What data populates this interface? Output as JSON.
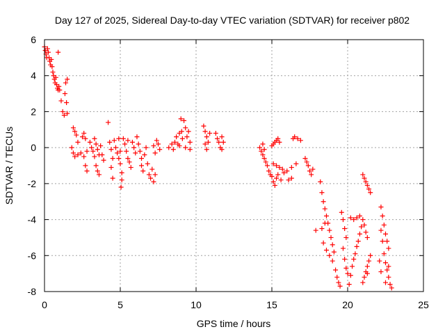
{
  "chart_data": {
    "type": "scatter",
    "title": "Day 127 of 2025, Sidereal Day-to-day VTEC variation (SDTVAR) for receiver p802",
    "xlabel": "GPS time / hours",
    "ylabel": "SDTVAR / TECUs",
    "xlim": [
      0,
      25
    ],
    "ylim": [
      -8,
      6
    ],
    "xticks": [
      0,
      5,
      10,
      15,
      20,
      25
    ],
    "yticks": [
      -8,
      -6,
      -4,
      -2,
      0,
      2,
      4,
      6
    ],
    "grid": true,
    "marker": "+",
    "color": "#ff0000",
    "series": [
      {
        "name": "SDTVAR",
        "points": [
          [
            0.0,
            5.6
          ],
          [
            0.05,
            5.4
          ],
          [
            0.1,
            5.2
          ],
          [
            0.15,
            5.0
          ],
          [
            0.2,
            5.5
          ],
          [
            0.25,
            5.3
          ],
          [
            0.3,
            5.0
          ],
          [
            0.35,
            4.8
          ],
          [
            0.4,
            4.6
          ],
          [
            0.45,
            4.9
          ],
          [
            0.5,
            4.5
          ],
          [
            0.55,
            4.2
          ],
          [
            0.6,
            4.0
          ],
          [
            0.65,
            3.8
          ],
          [
            0.7,
            3.6
          ],
          [
            0.75,
            3.9
          ],
          [
            0.8,
            3.5
          ],
          [
            0.85,
            3.3
          ],
          [
            0.9,
            3.2
          ],
          [
            0.95,
            3.4
          ],
          [
            0.9,
            5.3
          ],
          [
            1.0,
            3.2
          ],
          [
            1.1,
            2.6
          ],
          [
            1.2,
            2.0
          ],
          [
            1.3,
            1.8
          ],
          [
            1.35,
            3.0
          ],
          [
            1.4,
            3.6
          ],
          [
            1.5,
            3.8
          ],
          [
            1.45,
            2.5
          ],
          [
            1.5,
            1.9
          ],
          [
            1.9,
            1.1
          ],
          [
            2.0,
            0.9
          ],
          [
            2.1,
            0.7
          ],
          [
            2.2,
            0.3
          ],
          [
            1.8,
            0.0
          ],
          [
            1.9,
            -0.3
          ],
          [
            2.0,
            -0.5
          ],
          [
            2.2,
            -0.4
          ],
          [
            2.4,
            -0.3
          ],
          [
            2.5,
            0.6
          ],
          [
            2.6,
            0.8
          ],
          [
            2.7,
            0.5
          ],
          [
            2.8,
            -0.2
          ],
          [
            2.6,
            -0.5
          ],
          [
            2.7,
            -1.0
          ],
          [
            2.8,
            -1.3
          ],
          [
            3.0,
            0.3
          ],
          [
            3.1,
            0.0
          ],
          [
            3.2,
            -0.2
          ],
          [
            3.3,
            -0.5
          ],
          [
            3.3,
            0.5
          ],
          [
            3.4,
            0.2
          ],
          [
            3.5,
            -0.1
          ],
          [
            3.6,
            -0.4
          ],
          [
            3.4,
            -1.0
          ],
          [
            3.5,
            -1.3
          ],
          [
            3.6,
            -1.5
          ],
          [
            3.7,
            0.1
          ],
          [
            3.8,
            -0.4
          ],
          [
            3.9,
            -0.7
          ],
          [
            4.2,
            1.4
          ],
          [
            4.3,
            0.3
          ],
          [
            4.4,
            -0.1
          ],
          [
            4.5,
            -0.6
          ],
          [
            4.4,
            -1.1
          ],
          [
            4.5,
            -1.7
          ],
          [
            4.6,
            0.4
          ],
          [
            4.7,
            0.0
          ],
          [
            4.8,
            -0.3
          ],
          [
            4.9,
            -0.6
          ],
          [
            4.9,
            0.5
          ],
          [
            5.0,
            -0.2
          ],
          [
            5.0,
            -0.9
          ],
          [
            5.1,
            -1.4
          ],
          [
            5.05,
            -2.2
          ],
          [
            5.1,
            -1.8
          ],
          [
            5.2,
            0.5
          ],
          [
            5.3,
            0.2
          ],
          [
            5.4,
            -0.2
          ],
          [
            5.5,
            -0.6
          ],
          [
            5.5,
            0.4
          ],
          [
            5.6,
            -0.8
          ],
          [
            5.7,
            -1.1
          ],
          [
            5.8,
            0.3
          ],
          [
            5.9,
            0.0
          ],
          [
            6.0,
            -0.3
          ],
          [
            6.1,
            0.6
          ],
          [
            6.2,
            0.2
          ],
          [
            6.3,
            -0.2
          ],
          [
            6.4,
            -0.6
          ],
          [
            6.4,
            -1.0
          ],
          [
            6.5,
            -1.3
          ],
          [
            6.6,
            -0.4
          ],
          [
            6.7,
            0.0
          ],
          [
            6.8,
            -0.9
          ],
          [
            6.9,
            -1.5
          ],
          [
            7.0,
            -1.7
          ],
          [
            7.1,
            -1.2
          ],
          [
            7.2,
            -1.9
          ],
          [
            7.3,
            -1.5
          ],
          [
            7.4,
            0.4
          ],
          [
            7.5,
            0.2
          ],
          [
            7.6,
            -0.1
          ],
          [
            7.2,
            0.1
          ],
          [
            7.3,
            -0.3
          ],
          [
            8.2,
            0.0
          ],
          [
            8.4,
            0.2
          ],
          [
            8.5,
            -0.1
          ],
          [
            8.6,
            0.3
          ],
          [
            8.7,
            0.6
          ],
          [
            8.8,
            0.2
          ],
          [
            8.9,
            0.8
          ],
          [
            9.0,
            1.6
          ],
          [
            9.05,
            0.9
          ],
          [
            9.1,
            0.5
          ],
          [
            9.2,
            1.5
          ],
          [
            9.3,
            1.1
          ],
          [
            9.4,
            0.6
          ],
          [
            9.5,
            0.9
          ],
          [
            9.6,
            0.3
          ],
          [
            9.6,
            -0.1
          ],
          [
            9.3,
            0.0
          ],
          [
            8.9,
            0.1
          ],
          [
            10.5,
            1.2
          ],
          [
            10.6,
            0.9
          ],
          [
            10.7,
            0.6
          ],
          [
            10.8,
            0.3
          ],
          [
            10.9,
            0.8
          ],
          [
            10.6,
            0.2
          ],
          [
            10.7,
            -0.1
          ],
          [
            11.3,
            0.8
          ],
          [
            11.4,
            0.5
          ],
          [
            11.5,
            0.3
          ],
          [
            11.6,
            0.0
          ],
          [
            11.7,
            0.6
          ],
          [
            11.8,
            0.3
          ],
          [
            11.7,
            -0.1
          ],
          [
            14.2,
            0.0
          ],
          [
            14.3,
            -0.2
          ],
          [
            14.4,
            -0.4
          ],
          [
            14.5,
            -0.6
          ],
          [
            14.4,
            0.2
          ],
          [
            14.5,
            -0.1
          ],
          [
            14.6,
            -0.8
          ],
          [
            14.7,
            -1.0
          ],
          [
            14.8,
            -1.3
          ],
          [
            14.9,
            -1.5
          ],
          [
            15.0,
            -1.6
          ],
          [
            15.1,
            -1.9
          ],
          [
            15.2,
            -2.1
          ],
          [
            15.3,
            -1.7
          ],
          [
            15.1,
            -0.9
          ],
          [
            15.3,
            -1.0
          ],
          [
            15.5,
            -1.1
          ],
          [
            15.7,
            -1.2
          ],
          [
            15.4,
            -1.5
          ],
          [
            15.6,
            -1.8
          ],
          [
            15.0,
            0.1
          ],
          [
            15.1,
            0.2
          ],
          [
            15.2,
            0.3
          ],
          [
            15.3,
            0.4
          ],
          [
            15.4,
            0.5
          ],
          [
            15.5,
            0.3
          ],
          [
            15.8,
            -1.4
          ],
          [
            16.0,
            -1.3
          ],
          [
            16.3,
            -1.1
          ],
          [
            16.6,
            -0.9
          ],
          [
            16.4,
            0.5
          ],
          [
            16.5,
            0.6
          ],
          [
            16.7,
            0.5
          ],
          [
            16.9,
            0.4
          ],
          [
            16.1,
            -1.8
          ],
          [
            16.3,
            -1.7
          ],
          [
            17.2,
            -0.6
          ],
          [
            17.3,
            -0.8
          ],
          [
            17.4,
            -1.0
          ],
          [
            17.5,
            -1.3
          ],
          [
            17.6,
            -1.5
          ],
          [
            17.7,
            -1.2
          ],
          [
            18.2,
            -1.9
          ],
          [
            18.3,
            -2.5
          ],
          [
            18.4,
            -3.0
          ],
          [
            18.5,
            -3.4
          ],
          [
            18.6,
            -3.8
          ],
          [
            18.7,
            -4.2
          ],
          [
            18.8,
            -4.6
          ],
          [
            18.9,
            -5.0
          ],
          [
            19.0,
            -5.4
          ],
          [
            19.1,
            -5.8
          ],
          [
            18.3,
            -4.5
          ],
          [
            18.5,
            -4.2
          ],
          [
            18.4,
            -5.3
          ],
          [
            18.6,
            -5.7
          ],
          [
            18.8,
            -6.0
          ],
          [
            19.0,
            -6.3
          ],
          [
            19.2,
            -6.8
          ],
          [
            19.3,
            -7.2
          ],
          [
            19.4,
            -7.5
          ],
          [
            19.5,
            -7.7
          ],
          [
            17.9,
            -4.6
          ],
          [
            19.6,
            -3.6
          ],
          [
            19.7,
            -4.0
          ],
          [
            19.8,
            -4.5
          ],
          [
            19.9,
            -5.0
          ],
          [
            19.7,
            -5.6
          ],
          [
            19.8,
            -6.2
          ],
          [
            19.9,
            -6.7
          ],
          [
            20.0,
            -7.0
          ],
          [
            20.1,
            -7.6
          ],
          [
            20.2,
            -7.1
          ],
          [
            20.3,
            -6.6
          ],
          [
            20.4,
            -6.2
          ],
          [
            20.5,
            -5.9
          ],
          [
            20.6,
            -5.5
          ],
          [
            20.7,
            -5.2
          ],
          [
            20.8,
            -4.8
          ],
          [
            20.9,
            -4.4
          ],
          [
            21.0,
            -4.0
          ],
          [
            20.2,
            -3.9
          ],
          [
            20.4,
            -4.0
          ],
          [
            20.6,
            -3.9
          ],
          [
            20.8,
            -3.8
          ],
          [
            21.1,
            -4.3
          ],
          [
            21.2,
            -4.7
          ],
          [
            21.3,
            -5.0
          ],
          [
            21.0,
            -1.5
          ],
          [
            21.1,
            -1.7
          ],
          [
            21.2,
            -1.9
          ],
          [
            21.3,
            -2.1
          ],
          [
            21.4,
            -2.3
          ],
          [
            21.5,
            -2.5
          ],
          [
            21.0,
            -7.5
          ],
          [
            21.1,
            -7.2
          ],
          [
            21.2,
            -6.9
          ],
          [
            21.3,
            -6.6
          ],
          [
            21.4,
            -6.3
          ],
          [
            21.5,
            -6.0
          ],
          [
            21.3,
            -7.0
          ],
          [
            22.2,
            -3.3
          ],
          [
            22.3,
            -3.8
          ],
          [
            22.4,
            -4.3
          ],
          [
            22.5,
            -4.8
          ],
          [
            22.6,
            -5.2
          ],
          [
            22.7,
            -5.6
          ],
          [
            22.2,
            -4.6
          ],
          [
            22.3,
            -5.2
          ],
          [
            22.4,
            -5.9
          ],
          [
            22.5,
            -6.4
          ],
          [
            22.6,
            -6.8
          ],
          [
            22.7,
            -7.2
          ],
          [
            22.8,
            -7.6
          ],
          [
            22.9,
            -7.8
          ],
          [
            22.1,
            -6.3
          ],
          [
            22.2,
            -6.9
          ],
          [
            22.5,
            -7.5
          ],
          [
            22.7,
            -6.6
          ]
        ]
      }
    ]
  }
}
